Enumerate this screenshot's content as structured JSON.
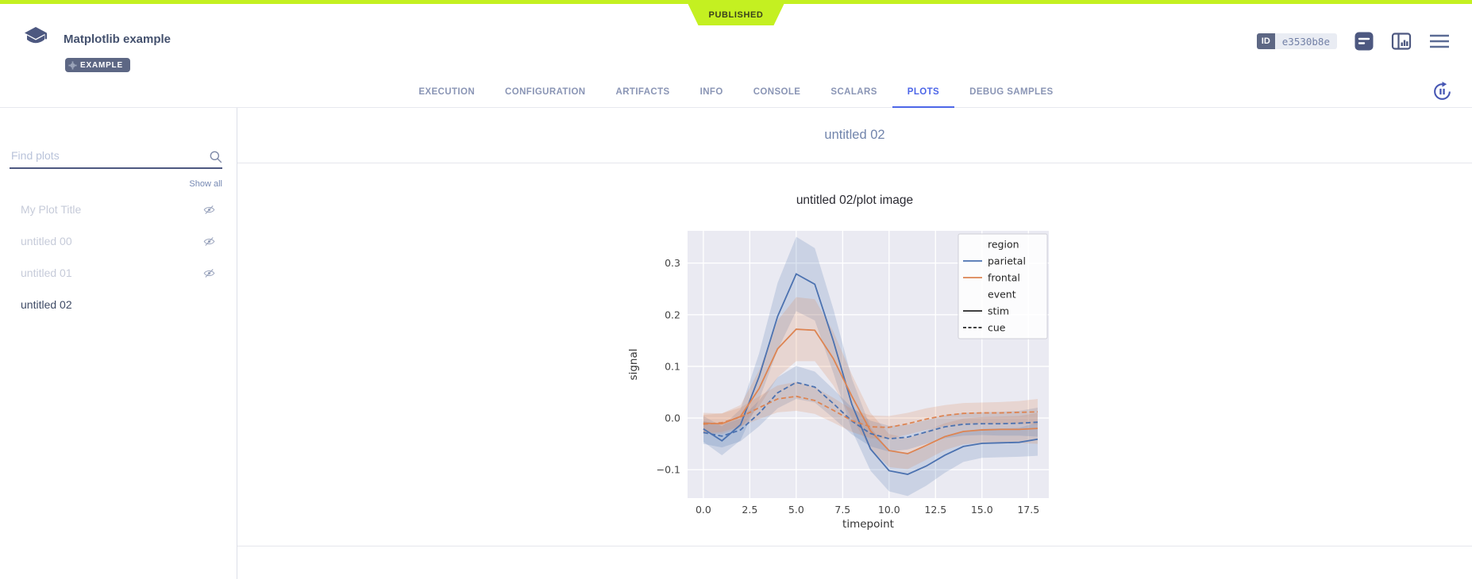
{
  "colors": {
    "accent": "#c4f021",
    "tab_active": "#4d66e8",
    "slate": "#4d5880",
    "parietal": "#4C72B0",
    "frontal": "#DD8452",
    "event_line": "#262626",
    "plot_bg": "#eaeaf2"
  },
  "status_banner": {
    "label": "PUBLISHED"
  },
  "header": {
    "title": "Matplotlib example",
    "badge": "EXAMPLE",
    "id_label": "ID",
    "id_value": "e3530b8e"
  },
  "icons": [
    "app-logo-icon",
    "gear-icon",
    "annotations-icon",
    "panel-layout-icon",
    "menu-icon",
    "auto-refresh-pause-icon",
    "search-icon",
    "eye-off-icon"
  ],
  "tabs": [
    {
      "label": "EXECUTION",
      "active": false
    },
    {
      "label": "CONFIGURATION",
      "active": false
    },
    {
      "label": "ARTIFACTS",
      "active": false
    },
    {
      "label": "INFO",
      "active": false
    },
    {
      "label": "CONSOLE",
      "active": false
    },
    {
      "label": "SCALARS",
      "active": false
    },
    {
      "label": "PLOTS",
      "active": true
    },
    {
      "label": "DEBUG SAMPLES",
      "active": false
    }
  ],
  "sidebar": {
    "search_placeholder": "Find plots",
    "show_all": "Show all",
    "items": [
      {
        "label": "My Plot Title",
        "hidden": true,
        "selected": false
      },
      {
        "label": "untitled 00",
        "hidden": true,
        "selected": false
      },
      {
        "label": "untitled 01",
        "hidden": true,
        "selected": false
      },
      {
        "label": "untitled 02",
        "hidden": false,
        "selected": true
      }
    ]
  },
  "main": {
    "section_title": "untitled 02",
    "plot_title": "untitled 02/plot image"
  },
  "chart_data": {
    "type": "line",
    "title": "untitled 02/plot image",
    "xlabel": "timepoint",
    "ylabel": "signal",
    "xlim": [
      -0.85,
      18.6
    ],
    "ylim": [
      -0.155,
      0.3625
    ],
    "xticks": [
      0.0,
      2.5,
      5.0,
      7.5,
      10.0,
      12.5,
      15.0,
      17.5
    ],
    "yticks": [
      -0.1,
      0.0,
      0.1,
      0.2,
      0.3
    ],
    "grid": true,
    "background": "#eaeaf2",
    "x": [
      0,
      1,
      2,
      3,
      4,
      5,
      6,
      7,
      8,
      9,
      10,
      11,
      12,
      13,
      14,
      15,
      16,
      17,
      18
    ],
    "series": [
      {
        "name": "parietal / stim",
        "region": "parietal",
        "event": "stim",
        "color": "#4C72B0",
        "dash": "solid",
        "values": [
          -0.021,
          -0.044,
          -0.013,
          0.08,
          0.197,
          0.279,
          0.259,
          0.149,
          0.026,
          -0.06,
          -0.102,
          -0.109,
          -0.093,
          -0.072,
          -0.055,
          -0.049,
          -0.048,
          -0.047,
          -0.041
        ],
        "ci": [
          0.025,
          0.028,
          0.03,
          0.045,
          0.065,
          0.072,
          0.07,
          0.062,
          0.05,
          0.042,
          0.04,
          0.042,
          0.038,
          0.034,
          0.03,
          0.028,
          0.028,
          0.028,
          0.032
        ]
      },
      {
        "name": "frontal / stim",
        "region": "frontal",
        "event": "stim",
        "color": "#DD8452",
        "dash": "solid",
        "values": [
          -0.01,
          -0.011,
          0.003,
          0.057,
          0.134,
          0.172,
          0.17,
          0.115,
          0.042,
          -0.025,
          -0.063,
          -0.069,
          -0.053,
          -0.036,
          -0.026,
          -0.023,
          -0.022,
          -0.022,
          -0.02
        ],
        "ci": [
          0.02,
          0.02,
          0.022,
          0.035,
          0.055,
          0.062,
          0.06,
          0.052,
          0.042,
          0.035,
          0.032,
          0.03,
          0.028,
          0.026,
          0.025,
          0.025,
          0.025,
          0.026,
          0.03
        ]
      },
      {
        "name": "parietal / cue",
        "region": "parietal",
        "event": "cue",
        "color": "#4C72B0",
        "dash": "dashed",
        "values": [
          -0.028,
          -0.035,
          -0.023,
          0.009,
          0.049,
          0.069,
          0.06,
          0.028,
          -0.006,
          -0.03,
          -0.04,
          -0.037,
          -0.027,
          -0.017,
          -0.012,
          -0.011,
          -0.011,
          -0.01,
          -0.008
        ],
        "ci": [
          0.022,
          0.022,
          0.022,
          0.025,
          0.03,
          0.032,
          0.03,
          0.028,
          0.026,
          0.025,
          0.025,
          0.024,
          0.023,
          0.022,
          0.022,
          0.022,
          0.023,
          0.024,
          0.028
        ]
      },
      {
        "name": "frontal / cue",
        "region": "frontal",
        "event": "cue",
        "color": "#DD8452",
        "dash": "dashed",
        "values": [
          -0.012,
          -0.009,
          0.002,
          0.02,
          0.037,
          0.042,
          0.034,
          0.015,
          -0.005,
          -0.017,
          -0.018,
          -0.011,
          -0.002,
          0.005,
          0.009,
          0.01,
          0.01,
          0.011,
          0.012
        ],
        "ci": [
          0.018,
          0.018,
          0.018,
          0.022,
          0.026,
          0.028,
          0.026,
          0.024,
          0.022,
          0.022,
          0.022,
          0.021,
          0.021,
          0.02,
          0.02,
          0.02,
          0.021,
          0.022,
          0.025
        ]
      }
    ],
    "legend": {
      "position": "upper right",
      "entries": [
        {
          "label": "region",
          "type": "header"
        },
        {
          "label": "parietal",
          "type": "line",
          "color": "#4C72B0",
          "dash": "solid"
        },
        {
          "label": "frontal",
          "type": "line",
          "color": "#DD8452",
          "dash": "solid"
        },
        {
          "label": "event",
          "type": "header"
        },
        {
          "label": "stim",
          "type": "line",
          "color": "#262626",
          "dash": "solid"
        },
        {
          "label": "cue",
          "type": "line",
          "color": "#262626",
          "dash": "dashed"
        }
      ]
    }
  }
}
